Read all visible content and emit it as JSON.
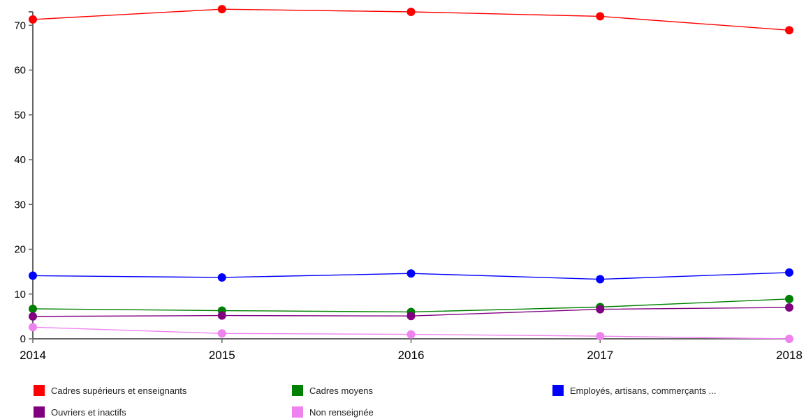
{
  "chart_data": {
    "type": "line",
    "x": [
      "2014",
      "2015",
      "2016",
      "2017",
      "2018"
    ],
    "ylim": [
      0,
      73
    ],
    "yticks": [
      0,
      10,
      20,
      30,
      40,
      50,
      60,
      70
    ],
    "grid": false,
    "legend_position": "bottom",
    "series": [
      {
        "name": "Cadres supérieurs et enseignants",
        "color": "#ff0000",
        "values": [
          71.3,
          73.6,
          73.0,
          72.0,
          68.9
        ]
      },
      {
        "name": "Cadres moyens",
        "color": "#008000",
        "values": [
          6.7,
          6.3,
          6.0,
          7.1,
          8.9
        ]
      },
      {
        "name": "Employés, artisans, commerçants ...",
        "color": "#0000ff",
        "values": [
          14.1,
          13.7,
          14.6,
          13.3,
          14.8
        ]
      },
      {
        "name": "Ouvriers et inactifs",
        "color": "#800080",
        "values": [
          5.0,
          5.2,
          5.1,
          6.6,
          7.0
        ]
      },
      {
        "name": "Non renseignée",
        "color": "#ee82ee",
        "values": [
          2.6,
          1.2,
          1.0,
          0.6,
          0.0
        ]
      }
    ]
  }
}
